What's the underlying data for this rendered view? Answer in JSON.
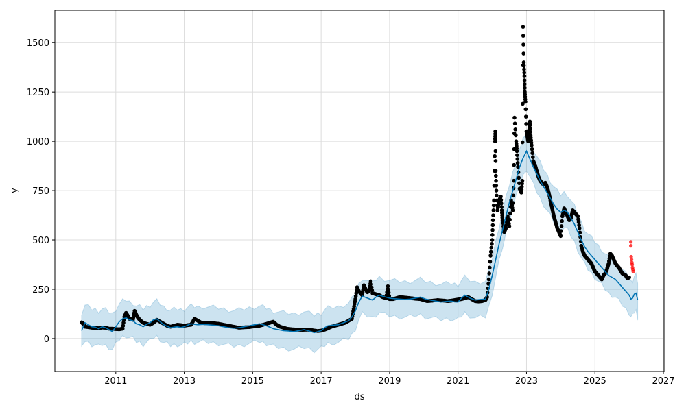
{
  "chart_data": {
    "type": "scatter",
    "title": "",
    "xlabel": "ds",
    "ylabel": "y",
    "xlim": [
      2009.22,
      2027.02
    ],
    "ylim": [
      -167,
      1664
    ],
    "grid": true,
    "xticks": [
      2011,
      2013,
      2015,
      2017,
      2019,
      2021,
      2023,
      2025,
      2027
    ],
    "yticks": [
      0,
      250,
      500,
      750,
      1000,
      1250,
      1500
    ],
    "colors": {
      "observed": "#000000",
      "test": "#ff0000",
      "forecast": "#0072B2",
      "interval": "#0072B2"
    },
    "uncertainty_halfwidth": 90,
    "observed": [
      [
        2010.0,
        82
      ],
      [
        2010.05,
        75
      ],
      [
        2010.1,
        60
      ],
      [
        2010.2,
        58
      ],
      [
        2010.3,
        55
      ],
      [
        2010.4,
        54
      ],
      [
        2010.5,
        52
      ],
      [
        2010.6,
        56
      ],
      [
        2010.7,
        55
      ],
      [
        2010.8,
        50
      ],
      [
        2010.9,
        50
      ],
      [
        2011.0,
        48
      ],
      [
        2011.1,
        47
      ],
      [
        2011.2,
        50
      ],
      [
        2011.25,
        110
      ],
      [
        2011.3,
        130
      ],
      [
        2011.35,
        115
      ],
      [
        2011.4,
        100
      ],
      [
        2011.5,
        95
      ],
      [
        2011.55,
        140
      ],
      [
        2011.6,
        120
      ],
      [
        2011.65,
        105
      ],
      [
        2011.7,
        95
      ],
      [
        2011.8,
        80
      ],
      [
        2011.9,
        75
      ],
      [
        2012.0,
        70
      ],
      [
        2012.1,
        80
      ],
      [
        2012.2,
        95
      ],
      [
        2012.3,
        85
      ],
      [
        2012.4,
        75
      ],
      [
        2012.5,
        65
      ],
      [
        2012.6,
        60
      ],
      [
        2012.7,
        65
      ],
      [
        2012.8,
        70
      ],
      [
        2012.9,
        68
      ],
      [
        2013.0,
        65
      ],
      [
        2013.1,
        68
      ],
      [
        2013.2,
        70
      ],
      [
        2013.3,
        100
      ],
      [
        2013.4,
        90
      ],
      [
        2013.5,
        80
      ],
      [
        2013.6,
        78
      ],
      [
        2013.7,
        80
      ],
      [
        2013.85,
        78
      ],
      [
        2014.0,
        75
      ],
      [
        2014.15,
        70
      ],
      [
        2014.3,
        65
      ],
      [
        2014.45,
        60
      ],
      [
        2014.6,
        55
      ],
      [
        2014.75,
        57
      ],
      [
        2014.9,
        58
      ],
      [
        2015.05,
        62
      ],
      [
        2015.2,
        65
      ],
      [
        2015.35,
        72
      ],
      [
        2015.5,
        80
      ],
      [
        2015.6,
        85
      ],
      [
        2015.7,
        70
      ],
      [
        2015.8,
        60
      ],
      [
        2015.9,
        55
      ],
      [
        2016.0,
        50
      ],
      [
        2016.15,
        47
      ],
      [
        2016.3,
        45
      ],
      [
        2016.45,
        44
      ],
      [
        2016.6,
        45
      ],
      [
        2016.75,
        42
      ],
      [
        2016.9,
        38
      ],
      [
        2017.0,
        40
      ],
      [
        2017.1,
        45
      ],
      [
        2017.2,
        52
      ],
      [
        2017.3,
        60
      ],
      [
        2017.4,
        65
      ],
      [
        2017.5,
        70
      ],
      [
        2017.6,
        75
      ],
      [
        2017.7,
        80
      ],
      [
        2017.8,
        90
      ],
      [
        2017.9,
        100
      ],
      [
        2017.95,
        150
      ],
      [
        2018.0,
        200
      ],
      [
        2018.05,
        260
      ],
      [
        2018.1,
        240
      ],
      [
        2018.15,
        230
      ],
      [
        2018.2,
        220
      ],
      [
        2018.25,
        270
      ],
      [
        2018.3,
        250
      ],
      [
        2018.35,
        235
      ],
      [
        2018.4,
        240
      ],
      [
        2018.45,
        290
      ],
      [
        2018.5,
        230
      ],
      [
        2018.6,
        225
      ],
      [
        2018.7,
        220
      ],
      [
        2018.8,
        210
      ],
      [
        2018.9,
        205
      ],
      [
        2018.95,
        265
      ],
      [
        2019.0,
        200
      ],
      [
        2019.1,
        200
      ],
      [
        2019.2,
        205
      ],
      [
        2019.3,
        210
      ],
      [
        2019.45,
        208
      ],
      [
        2019.6,
        205
      ],
      [
        2019.75,
        202
      ],
      [
        2019.9,
        200
      ],
      [
        2020.0,
        195
      ],
      [
        2020.1,
        190
      ],
      [
        2020.25,
        192
      ],
      [
        2020.4,
        195
      ],
      [
        2020.55,
        193
      ],
      [
        2020.7,
        190
      ],
      [
        2020.8,
        192
      ],
      [
        2020.9,
        195
      ],
      [
        2021.0,
        198
      ],
      [
        2021.1,
        200
      ],
      [
        2021.2,
        205
      ],
      [
        2021.3,
        210
      ],
      [
        2021.4,
        200
      ],
      [
        2021.5,
        190
      ],
      [
        2021.6,
        188
      ],
      [
        2021.7,
        190
      ],
      [
        2021.8,
        195
      ],
      [
        2021.85,
        210
      ],
      [
        2021.9,
        300
      ],
      [
        2021.95,
        420
      ],
      [
        2022.0,
        500
      ],
      [
        2022.02,
        600
      ],
      [
        2022.05,
        700
      ],
      [
        2022.08,
        1000
      ],
      [
        2022.09,
        1050
      ],
      [
        2022.1,
        850
      ],
      [
        2022.12,
        750
      ],
      [
        2022.15,
        650
      ],
      [
        2022.2,
        700
      ],
      [
        2022.25,
        720
      ],
      [
        2022.28,
        650
      ],
      [
        2022.3,
        600
      ],
      [
        2022.35,
        540
      ],
      [
        2022.4,
        560
      ],
      [
        2022.45,
        620
      ],
      [
        2022.5,
        570
      ],
      [
        2022.55,
        700
      ],
      [
        2022.6,
        650
      ],
      [
        2022.63,
        800
      ],
      [
        2022.65,
        1120
      ],
      [
        2022.7,
        1000
      ],
      [
        2022.72,
        950
      ],
      [
        2022.75,
        870
      ],
      [
        2022.8,
        760
      ],
      [
        2022.85,
        740
      ],
      [
        2022.88,
        800
      ],
      [
        2022.9,
        1580
      ],
      [
        2022.92,
        1400
      ],
      [
        2022.94,
        1330
      ],
      [
        2022.95,
        1250
      ],
      [
        2022.97,
        1200
      ],
      [
        2023.0,
        1050
      ],
      [
        2023.03,
        1020
      ],
      [
        2023.05,
        1000
      ],
      [
        2023.08,
        1060
      ],
      [
        2023.1,
        1100
      ],
      [
        2023.12,
        1030
      ],
      [
        2023.15,
        980
      ],
      [
        2023.2,
        900
      ],
      [
        2023.25,
        880
      ],
      [
        2023.3,
        850
      ],
      [
        2023.35,
        820
      ],
      [
        2023.4,
        800
      ],
      [
        2023.45,
        790
      ],
      [
        2023.5,
        780
      ],
      [
        2023.55,
        790
      ],
      [
        2023.6,
        770
      ],
      [
        2023.65,
        740
      ],
      [
        2023.7,
        700
      ],
      [
        2023.75,
        660
      ],
      [
        2023.8,
        620
      ],
      [
        2023.85,
        590
      ],
      [
        2023.9,
        560
      ],
      [
        2023.95,
        540
      ],
      [
        2024.0,
        520
      ],
      [
        2024.05,
        620
      ],
      [
        2024.1,
        660
      ],
      [
        2024.15,
        640
      ],
      [
        2024.2,
        620
      ],
      [
        2024.25,
        600
      ],
      [
        2024.3,
        610
      ],
      [
        2024.35,
        650
      ],
      [
        2024.4,
        640
      ],
      [
        2024.45,
        630
      ],
      [
        2024.5,
        620
      ],
      [
        2024.55,
        560
      ],
      [
        2024.6,
        470
      ],
      [
        2024.65,
        440
      ],
      [
        2024.7,
        420
      ],
      [
        2024.75,
        410
      ],
      [
        2024.8,
        400
      ],
      [
        2024.85,
        390
      ],
      [
        2024.9,
        380
      ],
      [
        2024.95,
        360
      ],
      [
        2025.0,
        340
      ],
      [
        2025.05,
        330
      ],
      [
        2025.1,
        320
      ],
      [
        2025.15,
        310
      ],
      [
        2025.2,
        300
      ],
      [
        2025.25,
        320
      ],
      [
        2025.3,
        330
      ],
      [
        2025.35,
        350
      ],
      [
        2025.4,
        380
      ],
      [
        2025.45,
        430
      ],
      [
        2025.5,
        420
      ],
      [
        2025.55,
        400
      ],
      [
        2025.6,
        380
      ],
      [
        2025.65,
        370
      ],
      [
        2025.7,
        360
      ],
      [
        2025.75,
        345
      ],
      [
        2025.8,
        330
      ],
      [
        2025.85,
        325
      ],
      [
        2025.9,
        320
      ],
      [
        2025.95,
        305
      ],
      [
        2026.0,
        310
      ]
    ],
    "test": [
      [
        2026.05,
        490
      ],
      [
        2026.05,
        470
      ],
      [
        2026.06,
        415
      ],
      [
        2026.07,
        400
      ],
      [
        2026.08,
        385
      ],
      [
        2026.09,
        375
      ],
      [
        2026.1,
        360
      ],
      [
        2026.11,
        350
      ],
      [
        2026.12,
        340
      ]
    ],
    "forecast": [
      [
        2010.0,
        40
      ],
      [
        2010.1,
        80
      ],
      [
        2010.2,
        70
      ],
      [
        2010.3,
        60
      ],
      [
        2010.4,
        58
      ],
      [
        2010.5,
        50
      ],
      [
        2010.6,
        60
      ],
      [
        2010.7,
        55
      ],
      [
        2010.8,
        45
      ],
      [
        2010.9,
        35
      ],
      [
        2011.0,
        60
      ],
      [
        2011.1,
        85
      ],
      [
        2011.2,
        100
      ],
      [
        2011.3,
        105
      ],
      [
        2011.4,
        95
      ],
      [
        2011.5,
        90
      ],
      [
        2011.6,
        75
      ],
      [
        2011.7,
        70
      ],
      [
        2011.8,
        60
      ],
      [
        2011.9,
        72
      ],
      [
        2012.0,
        80
      ],
      [
        2012.1,
        95
      ],
      [
        2012.2,
        100
      ],
      [
        2012.3,
        85
      ],
      [
        2012.4,
        70
      ],
      [
        2012.5,
        62
      ],
      [
        2012.6,
        55
      ],
      [
        2012.7,
        58
      ],
      [
        2012.8,
        60
      ],
      [
        2012.9,
        56
      ],
      [
        2013.0,
        60
      ],
      [
        2013.1,
        68
      ],
      [
        2013.2,
        75
      ],
      [
        2013.3,
        72
      ],
      [
        2013.4,
        70
      ],
      [
        2013.55,
        72
      ],
      [
        2013.7,
        70
      ],
      [
        2013.85,
        68
      ],
      [
        2014.0,
        65
      ],
      [
        2014.15,
        60
      ],
      [
        2014.3,
        55
      ],
      [
        2014.45,
        52
      ],
      [
        2014.6,
        55
      ],
      [
        2014.75,
        60
      ],
      [
        2014.9,
        65
      ],
      [
        2015.05,
        70
      ],
      [
        2015.2,
        75
      ],
      [
        2015.3,
        70
      ],
      [
        2015.4,
        65
      ],
      [
        2015.5,
        58
      ],
      [
        2015.6,
        50
      ],
      [
        2015.75,
        45
      ],
      [
        2015.9,
        40
      ],
      [
        2016.05,
        38
      ],
      [
        2016.2,
        35
      ],
      [
        2016.35,
        40
      ],
      [
        2016.5,
        45
      ],
      [
        2016.65,
        38
      ],
      [
        2016.8,
        30
      ],
      [
        2016.9,
        35
      ],
      [
        2017.0,
        40
      ],
      [
        2017.1,
        55
      ],
      [
        2017.2,
        65
      ],
      [
        2017.35,
        68
      ],
      [
        2017.5,
        70
      ],
      [
        2017.65,
        80
      ],
      [
        2017.8,
        90
      ],
      [
        2017.9,
        110
      ],
      [
        2018.0,
        140
      ],
      [
        2018.1,
        185
      ],
      [
        2018.2,
        215
      ],
      [
        2018.35,
        205
      ],
      [
        2018.5,
        195
      ],
      [
        2018.6,
        210
      ],
      [
        2018.7,
        220
      ],
      [
        2018.85,
        212
      ],
      [
        2019.0,
        205
      ],
      [
        2019.15,
        202
      ],
      [
        2019.3,
        200
      ],
      [
        2019.45,
        198
      ],
      [
        2019.6,
        200
      ],
      [
        2019.75,
        205
      ],
      [
        2019.9,
        210
      ],
      [
        2020.05,
        200
      ],
      [
        2020.2,
        195
      ],
      [
        2020.35,
        190
      ],
      [
        2020.5,
        185
      ],
      [
        2020.65,
        188
      ],
      [
        2020.8,
        190
      ],
      [
        2020.9,
        186
      ],
      [
        2021.0,
        185
      ],
      [
        2021.1,
        205
      ],
      [
        2021.2,
        220
      ],
      [
        2021.35,
        205
      ],
      [
        2021.5,
        195
      ],
      [
        2021.65,
        198
      ],
      [
        2021.8,
        200
      ],
      [
        2021.9,
        250
      ],
      [
        2022.0,
        320
      ],
      [
        2022.1,
        400
      ],
      [
        2022.2,
        480
      ],
      [
        2022.3,
        550
      ],
      [
        2022.4,
        620
      ],
      [
        2022.5,
        690
      ],
      [
        2022.6,
        750
      ],
      [
        2022.7,
        810
      ],
      [
        2022.8,
        870
      ],
      [
        2022.9,
        915
      ],
      [
        2023.0,
        950
      ],
      [
        2023.1,
        910
      ],
      [
        2023.2,
        870
      ],
      [
        2023.3,
        835
      ],
      [
        2023.4,
        800
      ],
      [
        2023.5,
        770
      ],
      [
        2023.6,
        740
      ],
      [
        2023.7,
        710
      ],
      [
        2023.8,
        680
      ],
      [
        2023.9,
        655
      ],
      [
        2024.0,
        640
      ],
      [
        2024.1,
        650
      ],
      [
        2024.2,
        640
      ],
      [
        2024.3,
        610
      ],
      [
        2024.4,
        580
      ],
      [
        2024.5,
        540
      ],
      [
        2024.6,
        500
      ],
      [
        2024.7,
        465
      ],
      [
        2024.8,
        440
      ],
      [
        2024.9,
        420
      ],
      [
        2025.0,
        400
      ],
      [
        2025.1,
        380
      ],
      [
        2025.2,
        360
      ],
      [
        2025.3,
        340
      ],
      [
        2025.4,
        320
      ],
      [
        2025.5,
        310
      ],
      [
        2025.6,
        300
      ],
      [
        2025.7,
        280
      ],
      [
        2025.8,
        260
      ],
      [
        2025.9,
        240
      ],
      [
        2026.0,
        220
      ],
      [
        2026.05,
        200
      ],
      [
        2026.1,
        205
      ],
      [
        2026.15,
        225
      ],
      [
        2026.2,
        230
      ],
      [
        2026.25,
        195
      ]
    ]
  }
}
